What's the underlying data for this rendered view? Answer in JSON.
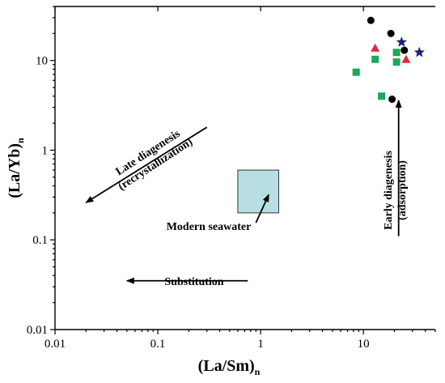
{
  "chart_data": {
    "type": "scatter",
    "title": "",
    "xlabel": "(La/Sm)",
    "xlabel_sub": "n",
    "ylabel": "(La/Yb)",
    "ylabel_sub": "n",
    "xscale": "log",
    "yscale": "log",
    "xlim": [
      0.01,
      50
    ],
    "ylim": [
      0.01,
      40
    ],
    "grid": false,
    "legend": "none",
    "xticks": [
      {
        "v": 0.01,
        "label": "0.01"
      },
      {
        "v": 0.1,
        "label": "0.1"
      },
      {
        "v": 1,
        "label": "1"
      },
      {
        "v": 10,
        "label": "10"
      }
    ],
    "yticks": [
      {
        "v": 0.01,
        "label": "0.01"
      },
      {
        "v": 0.1,
        "label": "0.1"
      },
      {
        "v": 1,
        "label": "1"
      },
      {
        "v": 10,
        "label": "10"
      }
    ],
    "series": [
      {
        "marker": "circle",
        "color": "#000000",
        "points": [
          [
            11.8,
            28
          ],
          [
            18.5,
            20
          ],
          [
            25,
            13
          ],
          [
            19,
            3.7
          ]
        ]
      },
      {
        "marker": "triangle",
        "color": "#e0283c",
        "points": [
          [
            13,
            13.8
          ],
          [
            26,
            10.3
          ]
        ]
      },
      {
        "marker": "square",
        "color": "#1aa85a",
        "points": [
          [
            8.5,
            7.4
          ],
          [
            13,
            10.3
          ],
          [
            15,
            4.0
          ],
          [
            21,
            12.3
          ],
          [
            21,
            9.6
          ]
        ]
      },
      {
        "marker": "star",
        "color": "#1a237e",
        "points": [
          [
            23.5,
            16
          ],
          [
            35,
            12.3
          ]
        ]
      }
    ],
    "regions": [
      {
        "label": "Modern seawater",
        "x": [
          0.6,
          1.5
        ],
        "y": [
          0.2,
          0.6
        ],
        "color": "#b7dfe3"
      }
    ],
    "annotations": [
      {
        "id": "late",
        "line1": "Late diagenesis",
        "line2": "(recrystallization)",
        "arrow_from": [
          0.3,
          1.8
        ],
        "arrow_to": [
          0.02,
          0.26
        ]
      },
      {
        "id": "seawater_label",
        "text": "Modern seawater",
        "arrow_from": [
          0.9,
          0.155
        ],
        "arrow_to": [
          1.2,
          0.32
        ]
      },
      {
        "id": "substitution",
        "text": "Substitution",
        "arrow_from": [
          0.75,
          0.035
        ],
        "arrow_to": [
          0.05,
          0.035
        ]
      },
      {
        "id": "early",
        "line1": "Early diagenesis",
        "line2": "(adsorption)",
        "arrow_from": [
          22,
          0.11
        ],
        "arrow_to": [
          22,
          3.6
        ]
      }
    ]
  }
}
